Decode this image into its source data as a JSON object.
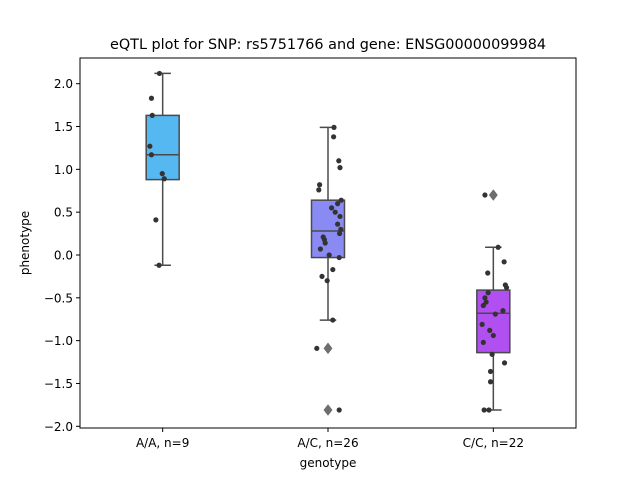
{
  "chart_data": {
    "type": "box",
    "title": "eQTL plot for SNP: rs5751766 and gene: ENSG00000099984",
    "xlabel": "genotype",
    "ylabel": "phenotype",
    "ylim": [
      -2.02,
      2.3
    ],
    "yticks": [
      {
        "value": 2.0,
        "label": "2.0"
      },
      {
        "value": 1.5,
        "label": "1.5"
      },
      {
        "value": 1.0,
        "label": "1.0"
      },
      {
        "value": 0.5,
        "label": "0.5"
      },
      {
        "value": 0.0,
        "label": "0.0"
      },
      {
        "value": -0.5,
        "label": "−0.5"
      },
      {
        "value": -1.0,
        "label": "−1.0"
      },
      {
        "value": -1.5,
        "label": "−1.5"
      },
      {
        "value": -2.0,
        "label": "−2.0"
      }
    ],
    "groups": [
      {
        "label": "A/A, n=9",
        "color": "#56b8f0",
        "q1": 0.88,
        "median": 1.17,
        "q3": 1.63,
        "whisker_low": -0.12,
        "whisker_high": 2.12,
        "outliers": [],
        "points": [
          {
            "y": 2.12,
            "dx": -0.08
          },
          {
            "y": 1.83,
            "dx": -0.28
          },
          {
            "y": 1.63,
            "dx": -0.26
          },
          {
            "y": 1.27,
            "dx": -0.32
          },
          {
            "y": 1.17,
            "dx": -0.28
          },
          {
            "y": 0.95,
            "dx": -0.01
          },
          {
            "y": 0.89,
            "dx": 0.04
          },
          {
            "y": 0.41,
            "dx": -0.17
          },
          {
            "y": -0.12,
            "dx": -0.09
          }
        ]
      },
      {
        "label": "A/C, n=26",
        "color": "#8a8af5",
        "q1": -0.03,
        "median": 0.28,
        "q3": 0.64,
        "whisker_low": -0.76,
        "whisker_high": 1.49,
        "outliers": [
          -1.09,
          -1.81
        ],
        "points": [
          {
            "y": 1.49,
            "dx": 0.15
          },
          {
            "y": 1.38,
            "dx": 0.14
          },
          {
            "y": 1.1,
            "dx": 0.27
          },
          {
            "y": 1.02,
            "dx": 0.3
          },
          {
            "y": 0.82,
            "dx": -0.21
          },
          {
            "y": 0.76,
            "dx": -0.23
          },
          {
            "y": 0.64,
            "dx": 0.33
          },
          {
            "y": 0.6,
            "dx": 0.24
          },
          {
            "y": 0.55,
            "dx": 0.09
          },
          {
            "y": 0.5,
            "dx": 0.18
          },
          {
            "y": 0.45,
            "dx": 0.3
          },
          {
            "y": 0.36,
            "dx": 0.24
          },
          {
            "y": 0.3,
            "dx": 0.32
          },
          {
            "y": 0.25,
            "dx": 0.29
          },
          {
            "y": 0.21,
            "dx": -0.12
          },
          {
            "y": 0.18,
            "dx": -0.09
          },
          {
            "y": 0.14,
            "dx": -0.07
          },
          {
            "y": 0.07,
            "dx": -0.19
          },
          {
            "y": 0.0,
            "dx": 0.03
          },
          {
            "y": -0.03,
            "dx": 0.28
          },
          {
            "y": -0.17,
            "dx": 0.12
          },
          {
            "y": -0.25,
            "dx": -0.15
          },
          {
            "y": -0.3,
            "dx": -0.02
          },
          {
            "y": -0.76,
            "dx": 0.12
          },
          {
            "y": -1.09,
            "dx": -0.28
          },
          {
            "y": -1.81,
            "dx": 0.28
          }
        ]
      },
      {
        "label": "C/C, n=22",
        "color": "#b24ff0",
        "q1": -1.14,
        "median": -0.68,
        "q3": -0.41,
        "whisker_low": -1.81,
        "whisker_high": 0.09,
        "outliers": [
          0.7
        ],
        "points": [
          {
            "y": 0.7,
            "dx": -0.21
          },
          {
            "y": 0.09,
            "dx": 0.12
          },
          {
            "y": -0.08,
            "dx": 0.27
          },
          {
            "y": -0.21,
            "dx": -0.14
          },
          {
            "y": -0.35,
            "dx": 0.3
          },
          {
            "y": -0.38,
            "dx": 0.33
          },
          {
            "y": -0.44,
            "dx": -0.13
          },
          {
            "y": -0.5,
            "dx": -0.21
          },
          {
            "y": -0.55,
            "dx": -0.18
          },
          {
            "y": -0.59,
            "dx": -0.25
          },
          {
            "y": -0.65,
            "dx": 0.24
          },
          {
            "y": -0.69,
            "dx": 0.05
          },
          {
            "y": -0.81,
            "dx": -0.28
          },
          {
            "y": -0.88,
            "dx": -0.09
          },
          {
            "y": -0.94,
            "dx": 0.0
          },
          {
            "y": -1.02,
            "dx": -0.25
          },
          {
            "y": -1.16,
            "dx": -0.03
          },
          {
            "y": -1.26,
            "dx": 0.28
          },
          {
            "y": -1.36,
            "dx": -0.07
          },
          {
            "y": -1.48,
            "dx": -0.07
          },
          {
            "y": -1.81,
            "dx": -0.23
          },
          {
            "y": -1.81,
            "dx": -0.11
          }
        ]
      }
    ],
    "grid": false,
    "legend": "none"
  }
}
